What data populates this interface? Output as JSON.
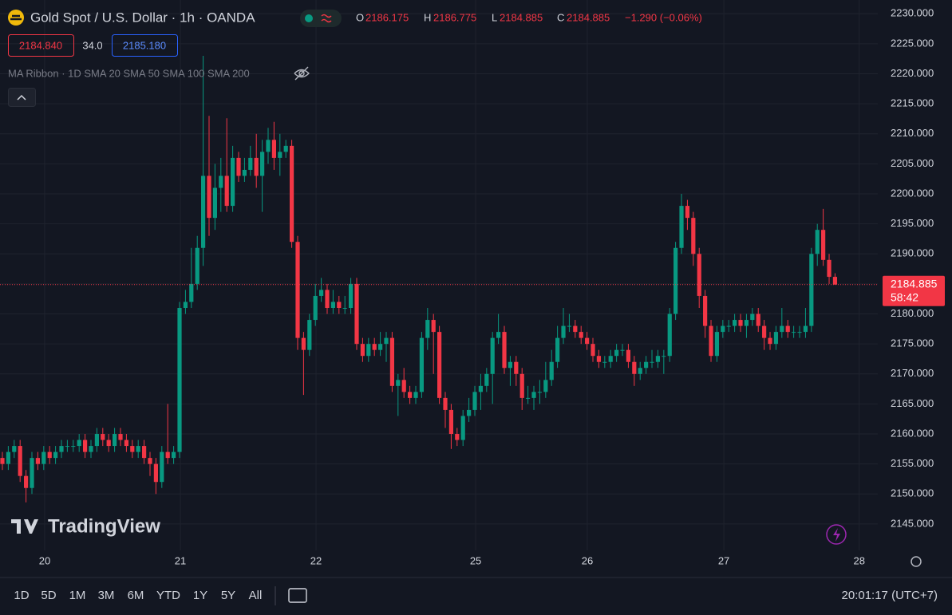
{
  "chart_data": {
    "type": "candlestick",
    "title": "Gold Spot / U.S. Dollar · 1h · OANDA",
    "up_color": "#089981",
    "down_color": "#f23645",
    "grid": true,
    "ylim": [
      2140.6,
      2232.3
    ],
    "yticks": [
      {
        "value": 2145,
        "label": "2145.000"
      },
      {
        "value": 2150,
        "label": "2150.000"
      },
      {
        "value": 2155,
        "label": "2155.000"
      },
      {
        "value": 2160,
        "label": "2160.000"
      },
      {
        "value": 2165,
        "label": "2165.000"
      },
      {
        "value": 2170,
        "label": "2170.000"
      },
      {
        "value": 2175,
        "label": "2175.000"
      },
      {
        "value": 2180,
        "label": "2180.000"
      },
      {
        "value": 2185,
        "label": "2185.000"
      },
      {
        "value": 2190,
        "label": "2190.000"
      },
      {
        "value": 2195,
        "label": "2195.000"
      },
      {
        "value": 2200,
        "label": "2200.000"
      },
      {
        "value": 2205,
        "label": "2205.000"
      },
      {
        "value": 2210,
        "label": "2210.000"
      },
      {
        "value": 2215,
        "label": "2215.000"
      },
      {
        "value": 2220,
        "label": "2220.000"
      },
      {
        "value": 2225,
        "label": "2225.000"
      },
      {
        "value": 2230,
        "label": "2230.000"
      }
    ],
    "xlim": [
      -0.405,
      148.24
    ],
    "xticks": [
      {
        "value": 7.16,
        "label": "20"
      },
      {
        "value": 30.14,
        "label": "21"
      },
      {
        "value": 53.11,
        "label": "22"
      },
      {
        "value": 80.14,
        "label": "25"
      },
      {
        "value": 99.05,
        "label": "26"
      },
      {
        "value": 122.17,
        "label": "27"
      },
      {
        "value": 145.1,
        "label": "28"
      }
    ],
    "open": [
      2156,
      2155,
      2157,
      2158,
      2153,
      2151,
      2156,
      2155,
      2157,
      2156,
      2157,
      2158,
      2158,
      2158,
      2159,
      2157,
      2158,
      2160,
      2159,
      2158,
      2160,
      2159,
      2158,
      2157,
      2158,
      2156,
      2155,
      2152,
      2157,
      2156,
      2157,
      2181,
      2182,
      2185,
      2191,
      2203,
      2196,
      2201,
      2203,
      2198,
      2206,
      2203,
      2204,
      2206,
      2203,
      2207,
      2209,
      2206,
      2207,
      2208,
      2192,
      2176,
      2174,
      2179,
      2183,
      2184,
      2181,
      2182,
      2181,
      2181,
      2185,
      2175,
      2173,
      2175,
      2174,
      2175,
      2176,
      2168,
      2169,
      2167,
      2166,
      2167,
      2176,
      2179,
      2177,
      2166,
      2164,
      2160,
      2159,
      2163,
      2164,
      2167,
      2168,
      2170,
      2176,
      2177,
      2171,
      2172,
      2170,
      2166,
      2166,
      2167,
      2167,
      2169,
      2172,
      2176,
      2178,
      2178,
      2177,
      2176,
      2175,
      2173,
      2172,
      2172,
      2173,
      2174,
      2174,
      2172,
      2170,
      2171,
      2172,
      2172,
      2173,
      2173,
      2180,
      2191,
      2198,
      2196,
      2190,
      2183,
      2178,
      2173,
      2177,
      2178,
      2178,
      2179,
      2178,
      2179,
      2180,
      2178,
      2176,
      2175,
      2177,
      2178,
      2177,
      2177,
      2177,
      2178,
      2190,
      2194,
      2189,
      2186.175
    ],
    "high": [
      2157,
      2158,
      2159,
      2159,
      2154,
      2157,
      2157,
      2158,
      2158,
      2158,
      2159,
      2159,
      2159,
      2160,
      2160,
      2159,
      2161,
      2161,
      2160,
      2161,
      2161,
      2160,
      2159,
      2159,
      2159,
      2157,
      2156,
      2158,
      2165,
      2158,
      2182,
      2184,
      2191,
      2193,
      2223,
      2213,
      2205,
      2206,
      2212.6,
      2208,
      2207,
      2206,
      2208,
      2210,
      2209,
      2211,
      2212,
      2210,
      2209,
      2209,
      2193,
      2177,
      2180,
      2185,
      2186,
      2185,
      2184,
      2183,
      2183,
      2186,
      2186,
      2176,
      2176,
      2176,
      2177,
      2177,
      2177,
      2170,
      2171,
      2168,
      2168,
      2177,
      2181,
      2180,
      2178,
      2167,
      2165,
      2161,
      2164,
      2166,
      2168,
      2170,
      2171,
      2177,
      2180,
      2178,
      2173,
      2173,
      2171,
      2168,
      2168,
      2169,
      2172,
      2174,
      2178,
      2181,
      2180,
      2179,
      2178,
      2177,
      2176,
      2174,
      2173,
      2174,
      2175,
      2175,
      2175,
      2173,
      2172,
      2173,
      2174,
      2174,
      2174,
      2181,
      2192,
      2200,
      2199,
      2197,
      2191,
      2184,
      2179,
      2178,
      2179,
      2179,
      2180,
      2180,
      2180,
      2181,
      2181,
      2179,
      2177,
      2178,
      2181,
      2179,
      2178,
      2178,
      2181,
      2191,
      2195,
      2197.5,
      2190,
      2186.775
    ],
    "low": [
      2154,
      2154,
      2156,
      2152,
      2148.6,
      2150,
      2154,
      2154,
      2155,
      2155,
      2156,
      2157,
      2157,
      2157,
      2156,
      2156,
      2157,
      2158,
      2157,
      2157,
      2158,
      2157,
      2156,
      2156,
      2155,
      2153,
      2150,
      2151,
      2155,
      2155,
      2156,
      2180,
      2181,
      2184,
      2188,
      2193,
      2194,
      2197,
      2197,
      2197,
      2202,
      2202,
      2203,
      2201,
      2197,
      2205,
      2204,
      2203,
      2206,
      2191,
      2174,
      2166.5,
      2173,
      2178,
      2182,
      2180,
      2180,
      2180,
      2180,
      2180,
      2174,
      2172,
      2172,
      2173,
      2173,
      2172,
      2167,
      2163,
      2166,
      2165,
      2165,
      2166,
      2174,
      2170,
      2165,
      2161,
      2157.5,
      2158,
      2158,
      2162,
      2163,
      2164,
      2167,
      2165,
      2175,
      2170,
      2168,
      2168,
      2164,
      2165,
      2164,
      2165,
      2166,
      2168,
      2171,
      2175,
      2177,
      2176,
      2175,
      2174,
      2172,
      2171,
      2171,
      2171,
      2172,
      2173,
      2171,
      2168,
      2169,
      2170,
      2171,
      2171,
      2170,
      2172,
      2179,
      2190,
      2194,
      2188,
      2181,
      2176,
      2172,
      2172,
      2176,
      2177,
      2177,
      2177,
      2176,
      2178,
      2177,
      2174,
      2174,
      2174,
      2176,
      2176,
      2176,
      2176,
      2176,
      2177,
      2188,
      2188,
      2185,
      2184.885
    ],
    "close": [
      2155,
      2157,
      2158,
      2153,
      2151,
      2156,
      2155,
      2157,
      2156,
      2157,
      2158,
      2158,
      2158,
      2159,
      2157,
      2158,
      2160,
      2159,
      2158,
      2160,
      2159,
      2158,
      2157,
      2158,
      2156,
      2155,
      2152,
      2157,
      2156,
      2157,
      2181,
      2182,
      2185,
      2191,
      2203,
      2196,
      2201,
      2203,
      2198,
      2206,
      2203,
      2204,
      2206,
      2203,
      2207,
      2209,
      2206,
      2207,
      2208,
      2192,
      2176,
      2174,
      2179,
      2183,
      2184,
      2181,
      2182,
      2181,
      2181,
      2185,
      2175,
      2173,
      2175,
      2174,
      2175,
      2176,
      2168,
      2169,
      2167,
      2166,
      2167,
      2176,
      2179,
      2177,
      2166,
      2164,
      2160,
      2159,
      2163,
      2164,
      2167,
      2168,
      2170,
      2176,
      2177,
      2171,
      2172,
      2170,
      2166,
      2166,
      2167,
      2167,
      2169,
      2172,
      2176,
      2178,
      2178,
      2177,
      2176,
      2175,
      2173,
      2172,
      2172,
      2173,
      2174,
      2174,
      2172,
      2170,
      2171,
      2172,
      2172,
      2173,
      2173,
      2180,
      2191,
      2198,
      2196,
      2190,
      2183,
      2178,
      2173,
      2177,
      2178,
      2178,
      2179,
      2178,
      2179,
      2180,
      2178,
      2176,
      2175,
      2177,
      2178,
      2177,
      2177,
      2177,
      2178,
      2190,
      2194,
      2189,
      2186.175,
      2184.885
    ]
  },
  "ui": {
    "ohlc_labels": [
      "O",
      "H",
      "L",
      "C"
    ],
    "change": "−1.290 (−0.06%)",
    "bid": "2184.840",
    "spread": "34.0",
    "ask": "2185.180",
    "indicator": "MA Ribbon · 1D SMA 20 SMA 50 SMA 100 SMA 200",
    "countdown": "58:42",
    "logo": "TradingView",
    "timeframes": [
      "1D",
      "5D",
      "1M",
      "3M",
      "6M",
      "YTD",
      "1Y",
      "5Y",
      "All"
    ],
    "clock": "20:01:17 (UTC+7)"
  }
}
